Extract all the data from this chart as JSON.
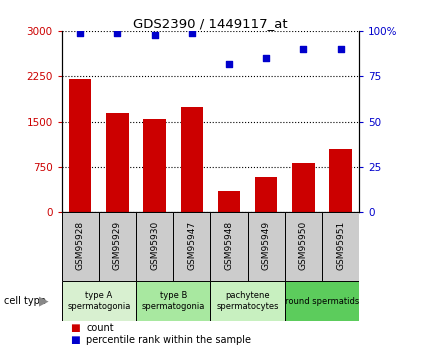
{
  "title": "GDS2390 / 1449117_at",
  "samples": [
    "GSM95928",
    "GSM95929",
    "GSM95930",
    "GSM95947",
    "GSM95948",
    "GSM95949",
    "GSM95950",
    "GSM95951"
  ],
  "counts": [
    2200,
    1650,
    1550,
    1750,
    350,
    580,
    820,
    1050
  ],
  "percentiles": [
    99,
    99,
    98,
    99,
    82,
    85,
    90,
    90
  ],
  "ylim_left": [
    0,
    3000
  ],
  "ylim_right": [
    0,
    100
  ],
  "yticks_left": [
    0,
    750,
    1500,
    2250,
    3000
  ],
  "yticks_right": [
    0,
    25,
    50,
    75,
    100
  ],
  "cell_groups": [
    {
      "label": "type A\nspermatogonia",
      "samples": [
        "GSM95928",
        "GSM95929"
      ],
      "color": "#d8f0d0"
    },
    {
      "label": "type B\nspermatogonia",
      "samples": [
        "GSM95930",
        "GSM95947"
      ],
      "color": "#a8e8a0"
    },
    {
      "label": "pachytene\nspermatocytes",
      "samples": [
        "GSM95948",
        "GSM95949"
      ],
      "color": "#c8f0c0"
    },
    {
      "label": "round spermatids",
      "samples": [
        "GSM95950",
        "GSM95951"
      ],
      "color": "#5ccc5c"
    }
  ],
  "bar_color": "#cc0000",
  "dot_color": "#0000cc",
  "bar_width": 0.6,
  "legend_bar_label": "count",
  "legend_dot_label": "percentile rank within the sample",
  "left_label_color": "#cc0000",
  "right_label_color": "#0000cc",
  "sample_box_color": "#cccccc"
}
